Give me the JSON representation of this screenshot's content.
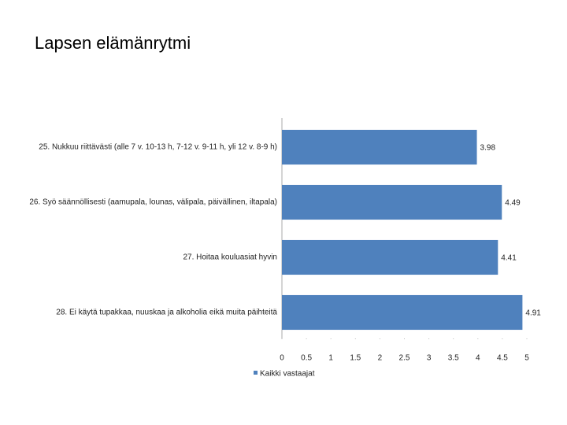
{
  "chart_data": {
    "type": "barh",
    "title": "Lapsen elämänrytmi",
    "categories": [
      "25. Nukkuu riittävästi (alle 7 v. 10-13 h, 7-12 v. 9-11 h, yli 12 v. 8-9 h)",
      "26. Syö säännöllisesti (aamupala, lounas, välipala, päivällinen, iltapala)",
      "27. Hoitaa kouluasiat hyvin",
      "28. Ei käytä tupakkaa, nuuskaa ja alkoholia eikä muita päihteitä"
    ],
    "series": [
      {
        "name": "Kaikki vastaajat",
        "color": "#4f81bd",
        "values": [
          3.98,
          4.49,
          4.41,
          4.91
        ]
      }
    ],
    "xlim": [
      0,
      5
    ],
    "xticks": [
      0,
      0.5,
      1,
      1.5,
      2,
      2.5,
      3,
      3.5,
      4,
      4.5,
      5
    ],
    "grid": false,
    "legend": "bottom"
  }
}
